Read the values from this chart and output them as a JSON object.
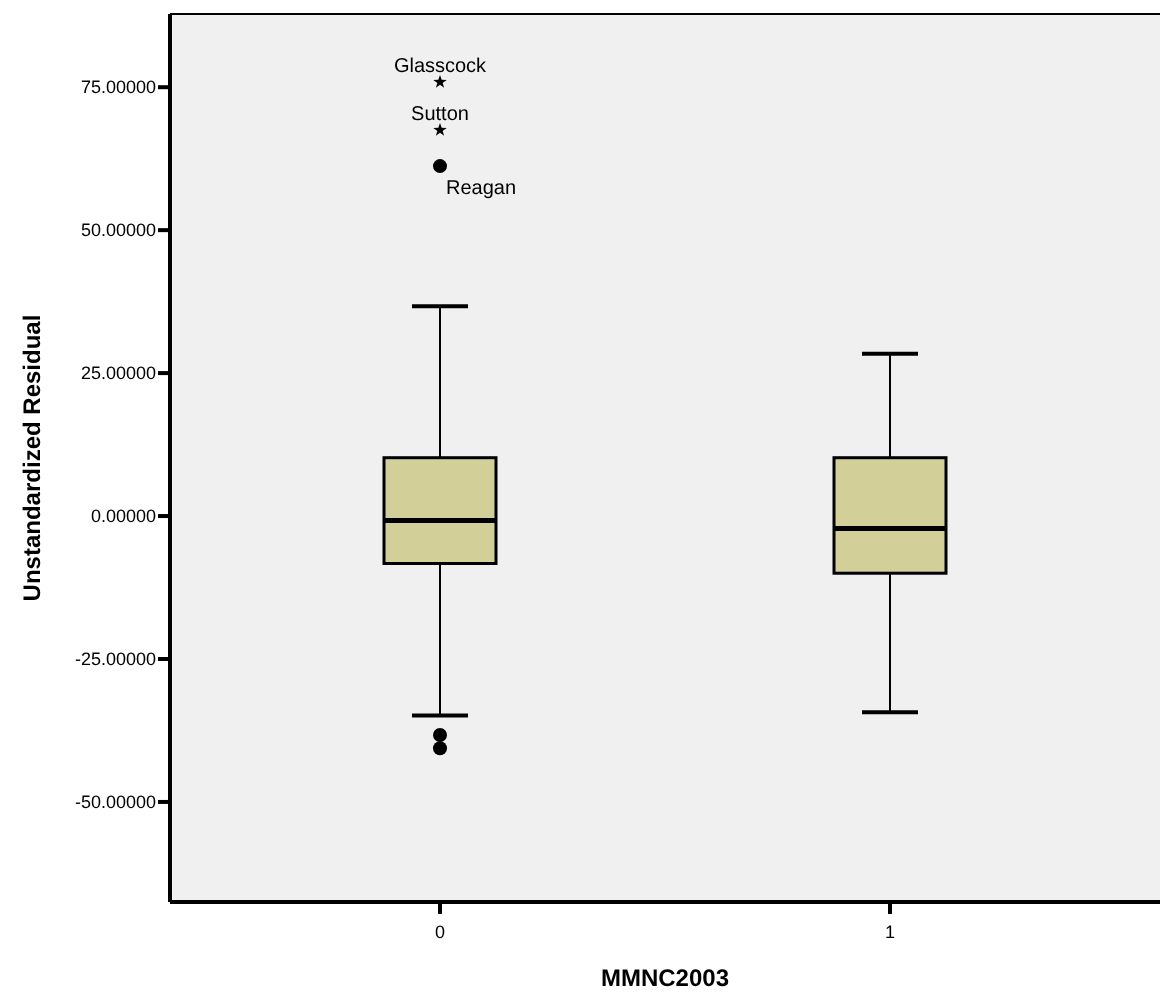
{
  "chart_data": {
    "type": "box",
    "xlabel": "MMNC2003",
    "ylabel": "Unstandardized Residual",
    "categories": [
      "0",
      "1"
    ],
    "ylim": [
      -67.5,
      87.8
    ],
    "yticks": [
      {
        "value": -50,
        "label": "-50.00000"
      },
      {
        "value": -25,
        "label": "-25.00000"
      },
      {
        "value": 0,
        "label": "0.00000"
      },
      {
        "value": 25,
        "label": "25.00000"
      },
      {
        "value": 50,
        "label": "50.00000"
      },
      {
        "value": 75,
        "label": "75.00000"
      }
    ],
    "grid": false,
    "series": [
      {
        "color": "#d3cf98",
        "boxes": [
          {
            "low": -34.9,
            "q1": -8.3,
            "median": -0.8,
            "q3": 10.2,
            "high": 36.7,
            "outliers": [
              -38.3,
              -40.6
            ]
          },
          {
            "low": -34.3,
            "q1": -10.0,
            "median": -2.2,
            "q3": 10.2,
            "high": 28.4
          }
        ]
      },
      {
        "type": "scatter",
        "marker": "circle",
        "color": "#000000",
        "x": [
          "0"
        ],
        "values": [
          61.2
        ]
      },
      {
        "type": "scatter",
        "marker": "star",
        "color": "#000000",
        "x": [
          "0",
          "0"
        ],
        "values": [
          75.9,
          67.5
        ]
      }
    ],
    "annotations": [
      {
        "text": "Glasscock",
        "x": "0",
        "y": 75.9
      },
      {
        "text": "Sutton",
        "x": "0",
        "y": 67.5
      },
      {
        "text": "Reagan",
        "x": "0",
        "y": 61.2
      }
    ]
  }
}
